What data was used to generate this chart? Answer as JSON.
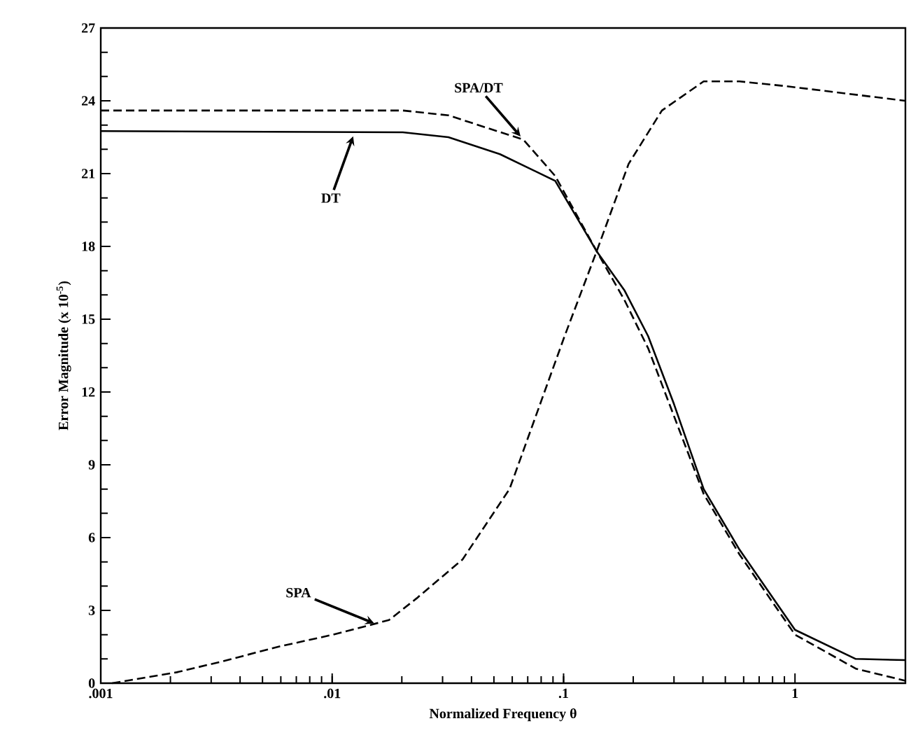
{
  "chart_data": {
    "type": "line",
    "xlabel": "Normalized Frequency   θ",
    "ylabel": "Error Magnitude   (x 10$^{-5}$)",
    "log": "x",
    "xlim": [
      0.001,
      3
    ],
    "ylim": [
      0,
      27
    ],
    "xticks": [
      {
        "value": 0.001,
        "label": ".001"
      },
      {
        "value": 0.01,
        "label": ".01"
      },
      {
        "value": 0.1,
        "label": ".1"
      },
      {
        "value": 1,
        "label": "1"
      }
    ],
    "yticks": [
      0,
      3,
      6,
      9,
      12,
      15,
      18,
      21,
      24,
      27
    ],
    "series": [
      {
        "color": "#000000",
        "line_style": "solid",
        "x": [
          0.001,
          0.0202,
          0.0318,
          0.0531,
          0.092,
          0.139,
          0.183,
          0.232,
          0.3,
          0.403,
          0.576,
          1,
          1.83,
          3
        ],
        "values": [
          22.75,
          22.7,
          22.5,
          21.8,
          20.7,
          17.8,
          16.2,
          14.3,
          11.5,
          8.0,
          5.5,
          2.2,
          1.0,
          0.95
        ]
      },
      {
        "color": "#000000",
        "line_style": "dashed",
        "x": [
          0.001,
          0.0202,
          0.0318,
          0.067,
          0.092,
          0.139,
          0.183,
          0.232,
          0.403,
          0.576,
          1,
          1.83,
          3
        ],
        "values": [
          23.6,
          23.6,
          23.4,
          22.4,
          20.9,
          17.8,
          15.8,
          13.8,
          7.8,
          5.3,
          2.0,
          0.6,
          0.1
        ]
      },
      {
        "color": "#000000",
        "line_style": "dashed",
        "x": [
          0.00112,
          0.00213,
          0.00336,
          0.00584,
          0.0101,
          0.0176,
          0.0232,
          0.0366,
          0.0584,
          0.101,
          0.139,
          0.191,
          0.266,
          0.403,
          0.576,
          0.92,
          3
        ],
        "values": [
          0,
          0.45,
          0.9,
          1.5,
          2.0,
          2.6,
          3.5,
          5.1,
          8.0,
          14.3,
          17.8,
          21.4,
          23.6,
          24.8,
          24.8,
          24.6,
          24.0
        ]
      }
    ],
    "annotations": [
      {
        "text": "DT",
        "x": 0.0125,
        "y": 22.7
      },
      {
        "text": "SPA/DT",
        "x": 0.067,
        "y": 22.4
      },
      {
        "text": "SPA",
        "x": 0.0158,
        "y": 2.4
      }
    ]
  }
}
